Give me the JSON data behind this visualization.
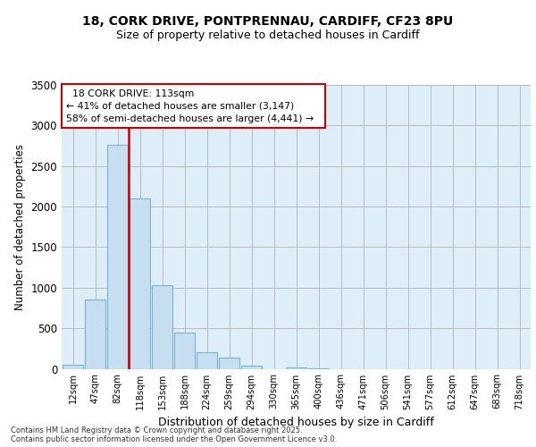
{
  "title_line1": "18, CORK DRIVE, PONTPRENNAU, CARDIFF, CF23 8PU",
  "title_line2": "Size of property relative to detached houses in Cardiff",
  "xlabel": "Distribution of detached houses by size in Cardiff",
  "ylabel": "Number of detached properties",
  "categories": [
    "12sqm",
    "47sqm",
    "82sqm",
    "118sqm",
    "153sqm",
    "188sqm",
    "224sqm",
    "259sqm",
    "294sqm",
    "330sqm",
    "365sqm",
    "400sqm",
    "436sqm",
    "471sqm",
    "506sqm",
    "541sqm",
    "577sqm",
    "612sqm",
    "647sqm",
    "683sqm",
    "718sqm"
  ],
  "values": [
    50,
    850,
    2760,
    2100,
    1030,
    450,
    200,
    140,
    40,
    0,
    20,
    10,
    0,
    0,
    0,
    0,
    0,
    0,
    0,
    0,
    0
  ],
  "bar_color": "#c5dff0",
  "bar_edge_color": "#7ab3d0",
  "grid_color": "#bbbbbb",
  "background_color": "#ddeef8",
  "annotation_box_title": "18 CORK DRIVE: 113sqm",
  "annotation_line1": "← 41% of detached houses are smaller (3,147)",
  "annotation_line2": "58% of semi-detached houses are larger (4,441) →",
  "ylim": [
    0,
    3500
  ],
  "yticks": [
    0,
    500,
    1000,
    1500,
    2000,
    2500,
    3000,
    3500
  ],
  "vline_color": "#cc0000",
  "vline_x": 2.5,
  "footnote1": "Contains HM Land Registry data © Crown copyright and database right 2025.",
  "footnote2": "Contains public sector information licensed under the Open Government Licence v3.0."
}
